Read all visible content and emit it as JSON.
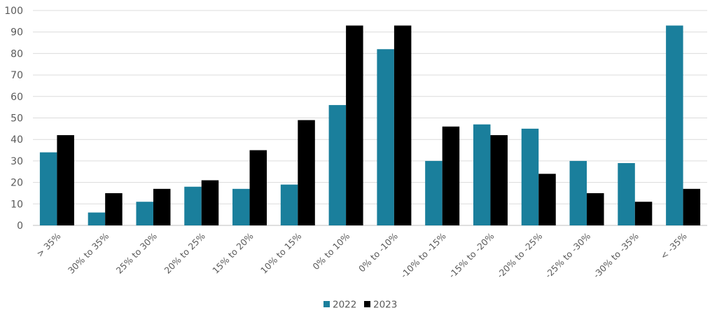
{
  "chart_data": {
    "type": "bar",
    "title": "",
    "xlabel": "",
    "ylabel": "",
    "ylim": [
      0,
      100
    ],
    "yticks": [
      0,
      10,
      20,
      30,
      40,
      50,
      60,
      70,
      80,
      90,
      100
    ],
    "grid": true,
    "legend_position": "bottom",
    "categories": [
      "> 35%",
      "30% to 35%",
      "25% to 30%",
      "20% to 25%",
      "15% to 20%",
      "10% to 15%",
      "0% to 10%",
      "0% to -10%",
      "-10% to -15%",
      "-15% to -20%",
      "-20% to -25%",
      "-25% to -30%",
      "-30% to -35%",
      "< -35%"
    ],
    "series": [
      {
        "name": "2022",
        "color": "#1a7f9c",
        "values": [
          34,
          6,
          11,
          18,
          17,
          19,
          56,
          82,
          30,
          47,
          45,
          30,
          29,
          93
        ]
      },
      {
        "name": "2023",
        "color": "#000000",
        "values": [
          42,
          15,
          17,
          21,
          35,
          49,
          93,
          93,
          46,
          42,
          24,
          15,
          11,
          17
        ]
      }
    ]
  }
}
